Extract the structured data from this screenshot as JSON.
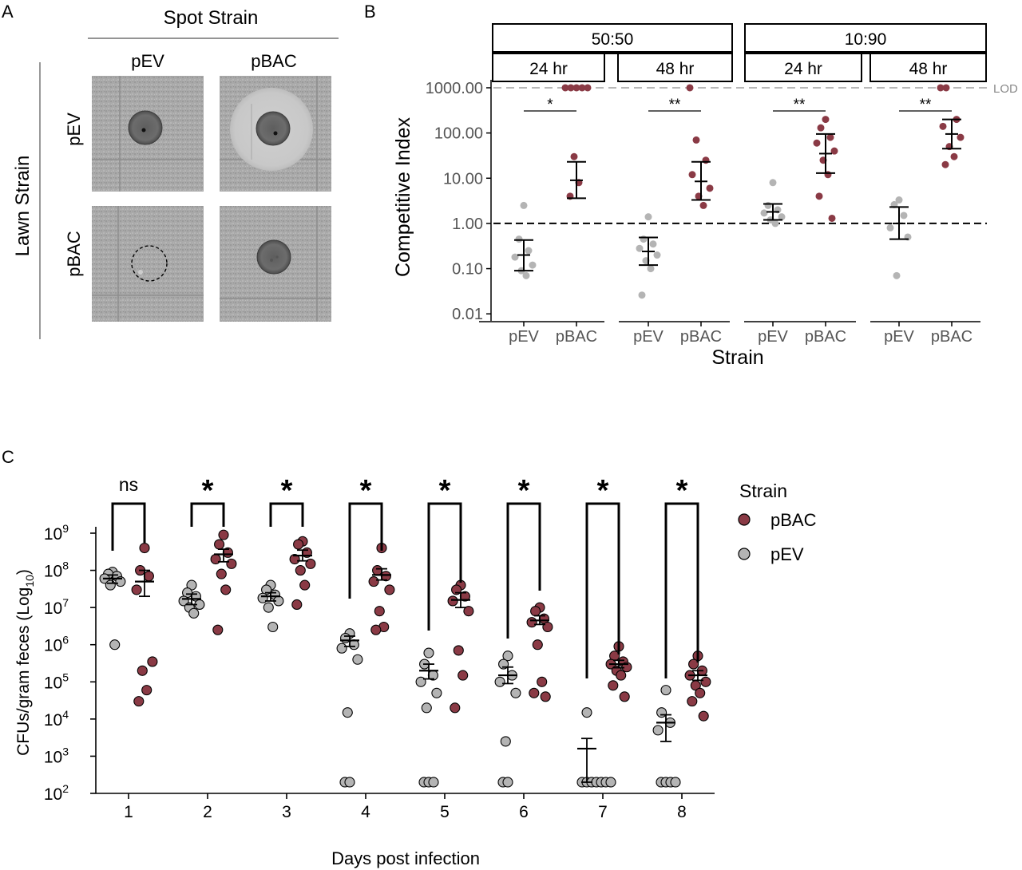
{
  "panel_letters": {
    "a": "A",
    "b": "B",
    "c": "C"
  },
  "panel_a": {
    "spot_header": "Spot Strain",
    "lawn_header": "Lawn Strain",
    "columns": [
      "pEV",
      "pBAC"
    ],
    "rows": [
      "pEV",
      "pBAC"
    ]
  },
  "colors": {
    "pBAC": "#8a3a45",
    "pEV": "#b4b4b4",
    "lod_line": "#b8b8b8",
    "black": "#000000"
  },
  "chart_data": [
    {
      "type": "scatter",
      "panel": "B",
      "ylabel": "Competitive Index",
      "xlabel": "Strain",
      "yscale": "log",
      "ylim": [
        0.007,
        1500
      ],
      "yticks": [
        "0.01",
        "0.10",
        "1.00",
        "10.00",
        "100.00",
        "1000.00"
      ],
      "lod_label": "LOD",
      "lod_value": 1000,
      "reference_value": 1,
      "categories": [
        "pEV",
        "pBAC"
      ],
      "ratio_groups": [
        {
          "label": "50:50",
          "times": [
            "24 hr",
            "48 hr"
          ]
        },
        {
          "label": "10:90",
          "times": [
            "24 hr",
            "48 hr"
          ]
        }
      ],
      "facets": [
        {
          "ratio": "50:50",
          "time": "24 hr",
          "significance": "*",
          "pEV": {
            "points": [
              2.5,
              0.45,
              0.25,
              0.18,
              0.12,
              0.09,
              0.07
            ],
            "mean": 0.2,
            "ci": [
              0.09,
              0.43
            ]
          },
          "pBAC": {
            "points": [
              1000,
              1000,
              1000,
              1000,
              1000,
              30,
              8,
              4
            ],
            "mean": 9,
            "ci": [
              3.6,
              23
            ]
          }
        },
        {
          "ratio": "50:50",
          "time": "48 hr",
          "significance": "**",
          "pEV": {
            "points": [
              1.4,
              0.45,
              0.35,
              0.28,
              0.2,
              0.15,
              0.1,
              0.026
            ],
            "mean": 0.24,
            "ci": [
              0.12,
              0.49
            ]
          },
          "pBAC": {
            "points": [
              1000,
              70,
              25,
              12,
              6,
              4,
              2.5
            ],
            "mean": 8.5,
            "ci": [
              3.3,
              23
            ]
          }
        },
        {
          "ratio": "10:90",
          "time": "24 hr",
          "significance": "**",
          "pEV": {
            "points": [
              8,
              2.5,
              2,
              1.7,
              1.4,
              1.2,
              1
            ],
            "mean": 1.8,
            "ci": [
              1.2,
              2.7
            ]
          },
          "pBAC": {
            "points": [
              200,
              130,
              80,
              60,
              40,
              25,
              12,
              4,
              1.3
            ],
            "mean": 35,
            "ci": [
              13,
              95
            ]
          }
        },
        {
          "ratio": "10:90",
          "time": "48 hr",
          "significance": "**",
          "pEV": {
            "points": [
              3.3,
              2.6,
              1.5,
              0.8,
              0.5,
              0.07
            ],
            "mean": 1,
            "ci": [
              0.45,
              2.3
            ]
          },
          "pBAC": {
            "points": [
              1000,
              1000,
              200,
              140,
              80,
              50,
              30,
              20
            ],
            "mean": 95,
            "ci": [
              45,
              200
            ]
          }
        }
      ]
    },
    {
      "type": "scatter",
      "panel": "C",
      "ylabel_parts": [
        "CFUs/gram feces (Log",
        "10",
        ")"
      ],
      "xlabel": "Days post infection",
      "yscale": "log",
      "ylim": [
        100,
        1000000000
      ],
      "ytick_exponents": [
        "2",
        "3",
        "4",
        "5",
        "6",
        "7",
        "8",
        "9"
      ],
      "ytick_base": "10",
      "categories": [
        "1",
        "2",
        "3",
        "4",
        "5",
        "6",
        "7",
        "8"
      ],
      "legend": {
        "title": "Strain",
        "position": "right",
        "entries": [
          "pBAC",
          "pEV"
        ]
      },
      "significance": [
        "ns",
        "*",
        "*",
        "*",
        "*",
        "*",
        "*",
        "*"
      ],
      "series": [
        {
          "name": "pEV",
          "days": [
            {
              "points": [
                90000000,
                80000000,
                70000000,
                60000000,
                50000000,
                40000000,
                1000000
              ],
              "mean": 60000000,
              "sem": [
                45000000,
                75000000
              ]
            },
            {
              "points": [
                40000000,
                25000000,
                20000000,
                15000000,
                12000000,
                10000000,
                7000000
              ],
              "mean": 17000000,
              "sem": [
                12000000,
                23000000
              ]
            },
            {
              "points": [
                40000000,
                30000000,
                22000000,
                18000000,
                15000000,
                10000000,
                3000000
              ],
              "mean": 20000000,
              "sem": [
                15000000,
                25000000
              ]
            },
            {
              "points": [
                2000000,
                1500000,
                1000000,
                800000,
                400000,
                15000,
                200,
                200
              ],
              "mean": 1300000,
              "sem": [
                900000,
                1700000
              ]
            },
            {
              "points": [
                600000,
                300000,
                150000,
                100000,
                50000,
                20000,
                200,
                200,
                200
              ],
              "mean": 200000,
              "sem": [
                120000,
                300000
              ]
            },
            {
              "points": [
                500000,
                300000,
                150000,
                100000,
                50000,
                2500,
                200,
                200
              ],
              "mean": 150000,
              "sem": [
                90000,
                250000
              ]
            },
            {
              "points": [
                15000,
                200,
                200,
                200,
                200,
                200,
                200,
                200
              ],
              "mean": 1600,
              "sem": [
                200,
                3000
              ]
            },
            {
              "points": [
                60000,
                15000,
                8000,
                5000,
                200,
                200,
                200,
                200
              ],
              "mean": 8000,
              "sem": [
                2500,
                13000
              ]
            }
          ]
        },
        {
          "name": "pBAC",
          "days": [
            {
              "points": [
                400000000,
                100000000,
                70000000,
                30000000,
                350000,
                200000,
                60000,
                30000
              ],
              "mean": 50000000,
              "sem": [
                20000000,
                100000000
              ]
            },
            {
              "points": [
                900000000,
                500000000,
                300000000,
                200000000,
                150000000,
                80000000,
                30000000,
                2500000
              ],
              "mean": 270000000,
              "sem": [
                170000000,
                370000000
              ]
            },
            {
              "points": [
                600000000,
                500000000,
                300000000,
                200000000,
                150000000,
                100000000,
                40000000,
                12000000
              ],
              "mean": 250000000,
              "sem": [
                180000000,
                350000000
              ]
            },
            {
              "points": [
                400000000,
                100000000,
                70000000,
                50000000,
                30000000,
                8000000,
                3000000,
                2500000
              ],
              "mean": 75000000,
              "sem": [
                55000000,
                110000000
              ]
            },
            {
              "points": [
                40000000,
                30000000,
                20000000,
                15000000,
                8000000,
                700000,
                150000,
                20000
              ],
              "mean": 16000000,
              "sem": [
                10000000,
                25000000
              ]
            },
            {
              "points": [
                10000000,
                8000000,
                5000000,
                4000000,
                3000000,
                1000000,
                100000,
                50000,
                40000
              ],
              "mean": 4500000,
              "sem": [
                3500000,
                6000000
              ]
            },
            {
              "points": [
                900000,
                500000,
                350000,
                300000,
                250000,
                200000,
                150000,
                80000,
                40000
              ],
              "mean": 300000,
              "sem": [
                240000,
                380000
              ]
            },
            {
              "points": [
                500000,
                300000,
                200000,
                150000,
                100000,
                80000,
                50000,
                30000,
                12000
              ],
              "mean": 150000,
              "sem": [
                110000,
                200000
              ]
            }
          ]
        }
      ]
    }
  ]
}
